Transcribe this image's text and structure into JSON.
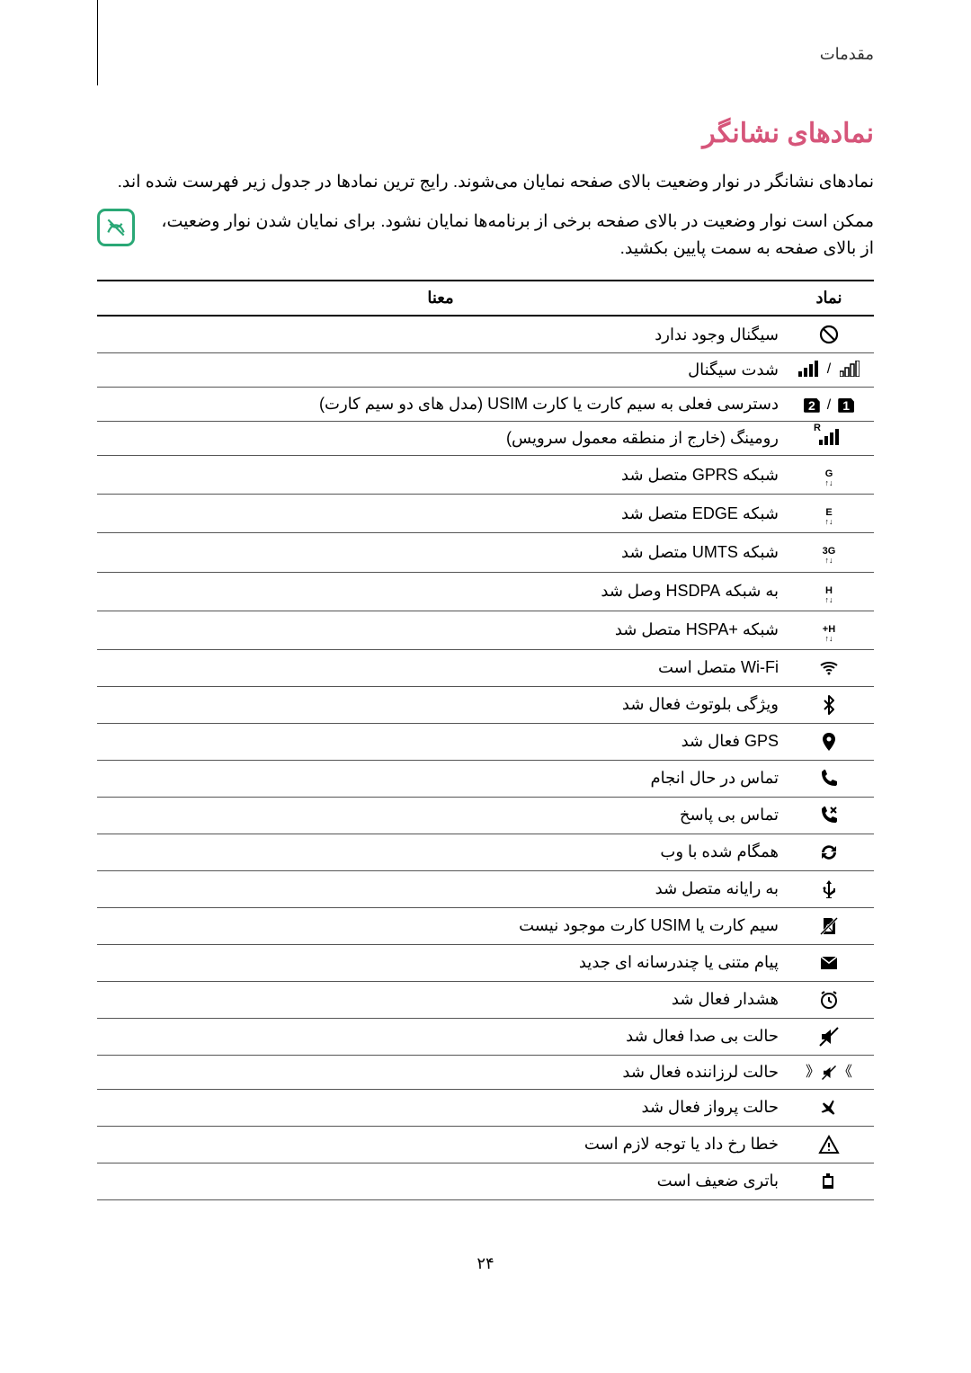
{
  "breadcrumb": "مقدمات",
  "title": "نمادهای نشانگر",
  "intro": "نمادهای نشانگر در نوار وضعیت بالای صفحه نمایان می‌شوند. رایج ترین نمادها در جدول زیر فهرست شده اند.",
  "note": "ممکن است نوار وضعیت در بالای صفحه برخی از برنامه‌ها نمایان نشود. برای نمایان شدن نوار وضعیت، از بالای صفحه به سمت پایین بکشید.",
  "table": {
    "headers": {
      "icon": "نماد",
      "meaning": "معنا"
    },
    "rows": [
      {
        "icon": "no-signal",
        "meaning": "سیگنال وجود ندارد"
      },
      {
        "icon": "signal-strength",
        "meaning": "شدت سیگنال"
      },
      {
        "icon": "sim-slots",
        "meaning": "دسترسی فعلی به سیم کارت یا کارت USIM (مدل های دو سیم کارت)"
      },
      {
        "icon": "roaming",
        "meaning": "رومینگ (خارج از منطقه معمول سرویس)"
      },
      {
        "icon": "gprs",
        "meaning": "شبکه GPRS متصل شد"
      },
      {
        "icon": "edge",
        "meaning": "شبکه EDGE متصل شد"
      },
      {
        "icon": "umts",
        "meaning": "شبکه UMTS متصل شد"
      },
      {
        "icon": "hsdpa",
        "meaning": "به شبکه HSDPA وصل شد"
      },
      {
        "icon": "hspa-plus",
        "meaning": "شبکه +HSPA متصل شد"
      },
      {
        "icon": "wifi",
        "meaning": "Wi-Fi متصل است"
      },
      {
        "icon": "bluetooth",
        "meaning": "ویژگی بلوتوث فعال شد"
      },
      {
        "icon": "gps",
        "meaning": "GPS فعال شد"
      },
      {
        "icon": "call-active",
        "meaning": "تماس در حال انجام"
      },
      {
        "icon": "missed-call",
        "meaning": "تماس بی پاسخ"
      },
      {
        "icon": "sync",
        "meaning": "همگام شده با وب"
      },
      {
        "icon": "usb",
        "meaning": "به رایانه متصل شد"
      },
      {
        "icon": "no-sim",
        "meaning": "سیم کارت یا USIM کارت موجود نیست"
      },
      {
        "icon": "message",
        "meaning": "پیام متنی یا چندرسانه ای جدید"
      },
      {
        "icon": "alarm",
        "meaning": "هشدار فعال شد"
      },
      {
        "icon": "mute",
        "meaning": "حالت بی صدا فعال شد"
      },
      {
        "icon": "vibrate",
        "meaning": "حالت لرزاننده فعال شد"
      },
      {
        "icon": "airplane",
        "meaning": "حالت پرواز فعال شد"
      },
      {
        "icon": "error",
        "meaning": "خطا رخ داد یا توجه لازم است"
      },
      {
        "icon": "battery-low",
        "meaning": "باتری ضعیف است"
      }
    ]
  },
  "page_number": "۲۴",
  "colors": {
    "accent": "#d6557a",
    "note_border": "#2aa876"
  }
}
